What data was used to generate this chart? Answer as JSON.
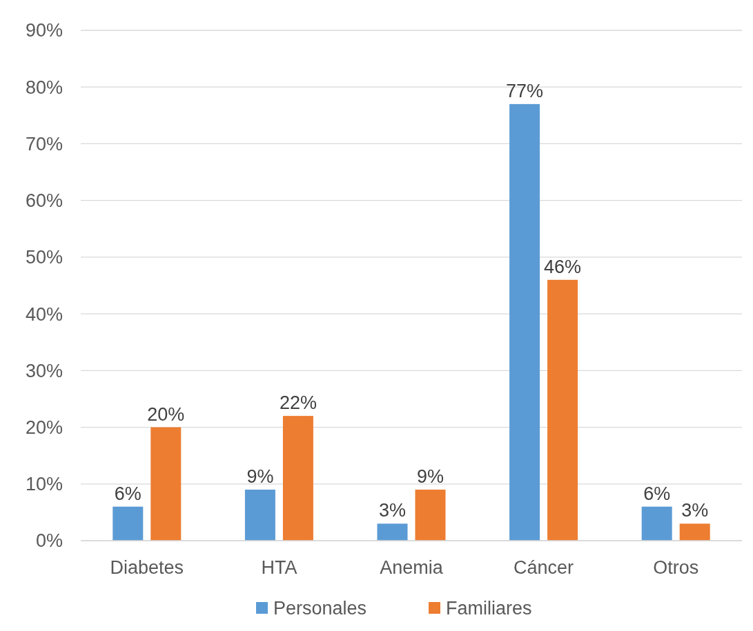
{
  "chart_data": {
    "type": "bar",
    "categories": [
      "Diabetes",
      "HTA",
      "Anemia",
      "Cáncer",
      "Otros"
    ],
    "series": [
      {
        "name": "Personales",
        "color": "#5b9bd5",
        "values": [
          6,
          9,
          3,
          77,
          6
        ],
        "value_labels": [
          "6%",
          "9%",
          "3%",
          "77%",
          "6%"
        ]
      },
      {
        "name": "Familiares",
        "color": "#ed7d31",
        "values": [
          20,
          22,
          9,
          46,
          3
        ],
        "value_labels": [
          "20%",
          "22%",
          "9%",
          "46%",
          "3%"
        ]
      }
    ],
    "ylim": [
      0,
      90
    ],
    "yticks": [
      {
        "value": 0,
        "label": "0%"
      },
      {
        "value": 10,
        "label": "10%"
      },
      {
        "value": 20,
        "label": "20%"
      },
      {
        "value": 30,
        "label": "30%"
      },
      {
        "value": 40,
        "label": "40%"
      },
      {
        "value": 50,
        "label": "50%"
      },
      {
        "value": 60,
        "label": "60%"
      },
      {
        "value": 70,
        "label": "70%"
      },
      {
        "value": 80,
        "label": "80%"
      },
      {
        "value": 90,
        "label": "90%"
      }
    ],
    "grid": "y",
    "legend": "bottom"
  }
}
